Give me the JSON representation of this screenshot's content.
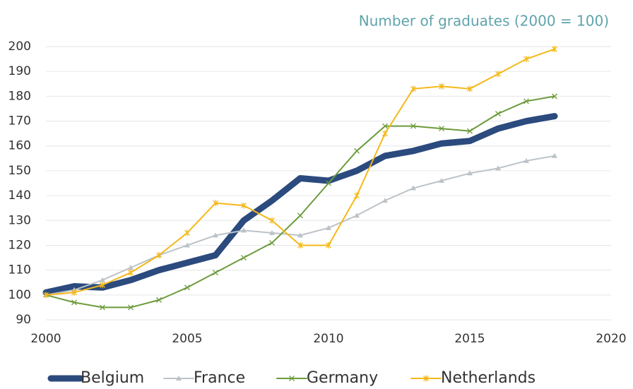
{
  "chart_data": {
    "type": "line",
    "subtitle": "Number of graduates (2000 = 100)",
    "x": [
      2000,
      2001,
      2002,
      2003,
      2004,
      2005,
      2006,
      2007,
      2008,
      2009,
      2010,
      2011,
      2012,
      2013,
      2014,
      2015,
      2016,
      2017,
      2018
    ],
    "series": [
      {
        "name": "Belgium",
        "color": "#2b4a7e",
        "width": 9,
        "marker": "none",
        "values": [
          101,
          103.5,
          103,
          106,
          110,
          113,
          116,
          130,
          138,
          147,
          146,
          150,
          156,
          158,
          161,
          162,
          167,
          170,
          172
        ]
      },
      {
        "name": "France",
        "color": "#bcc3c8",
        "width": 2,
        "marker": "triangle",
        "values": [
          100,
          102,
          106,
          111,
          116,
          120,
          124,
          126,
          125,
          124,
          127,
          132,
          138,
          143,
          146,
          149,
          151,
          154,
          156
        ]
      },
      {
        "name": "Germany",
        "color": "#6b9b3a",
        "width": 2,
        "marker": "x",
        "values": [
          100,
          97,
          95,
          95,
          98,
          103,
          109,
          115,
          121,
          132,
          145,
          158,
          168,
          168,
          167,
          166,
          173,
          178,
          180
        ]
      },
      {
        "name": "Netherlands",
        "color": "#f4b818",
        "width": 2,
        "marker": "star",
        "values": [
          100,
          101,
          104,
          109,
          116,
          125,
          137,
          136,
          130,
          120,
          120,
          140,
          165,
          183,
          184,
          183,
          189,
          195,
          199
        ]
      }
    ],
    "xlim": [
      2000,
      2020
    ],
    "xticks": [
      2000,
      2005,
      2010,
      2015,
      2020
    ],
    "ylim": [
      90,
      200
    ],
    "yticks": [
      90,
      100,
      110,
      120,
      130,
      140,
      150,
      160,
      170,
      180,
      190,
      200
    ],
    "grid": true,
    "legend": "bottom"
  }
}
